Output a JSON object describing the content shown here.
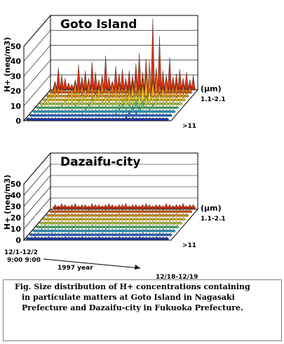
{
  "chart_data": [
    {
      "type": "3d-bar",
      "site": "Goto Island",
      "ylabel": "H+ (neq/m3)",
      "yticks": [
        "0",
        "10",
        "20",
        "30",
        "40",
        "50"
      ],
      "ylim": [
        0,
        50
      ],
      "size_labels": [
        "(μm)",
        "1.1-2.1",
        ">11"
      ],
      "fine_fraction_series": [
        5,
        14,
        9,
        7,
        4,
        3,
        6,
        16,
        8,
        12,
        7,
        18,
        11,
        6,
        9,
        22,
        8,
        5,
        15,
        10,
        13,
        7,
        12,
        9,
        17,
        24,
        11,
        20,
        9,
        47,
        14,
        35,
        12,
        9,
        21,
        8,
        10,
        13,
        7,
        11,
        6,
        9
      ]
    },
    {
      "type": "3d-bar",
      "site": "Dazaifu-city",
      "ylabel": "H+ (neq/m3)",
      "yticks": [
        "0",
        "10",
        "20",
        "30",
        "40",
        "50"
      ],
      "ylim": [
        0,
        50
      ],
      "size_labels": [
        "(μm)",
        "1.1-2.1",
        ">11"
      ],
      "x_start": "12/1-12/2",
      "x_start_time": "9:00  9:00",
      "x_period": "1997 year",
      "x_end": "12/18-12/19",
      "x_end_time": "9:00   9:00",
      "fine_fraction_series": [
        3,
        2,
        4,
        3,
        2,
        3,
        4,
        2,
        3,
        3,
        2,
        4,
        3,
        3,
        2,
        3,
        4,
        3,
        2,
        3,
        3,
        4,
        2,
        3,
        3,
        2,
        3,
        4,
        3,
        2,
        3,
        3,
        2,
        4,
        3,
        2,
        3,
        3,
        4,
        2,
        3,
        3
      ]
    }
  ],
  "caption": {
    "line1": "Fig.  Size distribution of H+ concentrations containing",
    "line2": "in particulate matters at Goto Island in Nagasaki",
    "line3": "Prefecture and Dazaifu-city in Fukuoka Prefecture."
  }
}
